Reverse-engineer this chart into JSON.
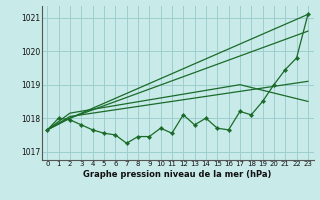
{
  "bg_color": "#c8eae8",
  "grid_color": "#9ecece",
  "line_color": "#1a6b2a",
  "xlabel": "Graphe pression niveau de la mer (hPa)",
  "ylim": [
    1016.75,
    1021.35
  ],
  "xlim": [
    -0.5,
    23.5
  ],
  "yticks": [
    1017,
    1018,
    1019,
    1020,
    1021
  ],
  "xticks": [
    0,
    1,
    2,
    3,
    4,
    5,
    6,
    7,
    8,
    9,
    10,
    11,
    12,
    13,
    14,
    15,
    16,
    17,
    18,
    19,
    20,
    21,
    22,
    23
  ],
  "line_main": [
    1017.65,
    1018.0,
    1017.95,
    1017.8,
    1017.65,
    1017.55,
    1017.5,
    1017.25,
    1017.45,
    1017.45,
    1017.7,
    1017.55,
    1018.1,
    1017.8,
    1018.0,
    1017.7,
    1017.65,
    1018.2,
    1018.1,
    1018.5,
    1019.0,
    1019.45,
    1019.8,
    1021.1
  ],
  "line_upper": [
    [
      0,
      1017.65
    ],
    [
      2,
      1018.0
    ],
    [
      23,
      1021.1
    ]
  ],
  "line_mid_upper": [
    [
      0,
      1017.65
    ],
    [
      2,
      1018.0
    ],
    [
      23,
      1020.6
    ]
  ],
  "line_mid_lower": [
    [
      0,
      1017.65
    ],
    [
      2,
      1018.05
    ],
    [
      23,
      1019.1
    ]
  ],
  "line_lower": [
    [
      0,
      1017.65
    ],
    [
      2,
      1018.15
    ],
    [
      17,
      1019.0
    ],
    [
      23,
      1018.5
    ]
  ]
}
